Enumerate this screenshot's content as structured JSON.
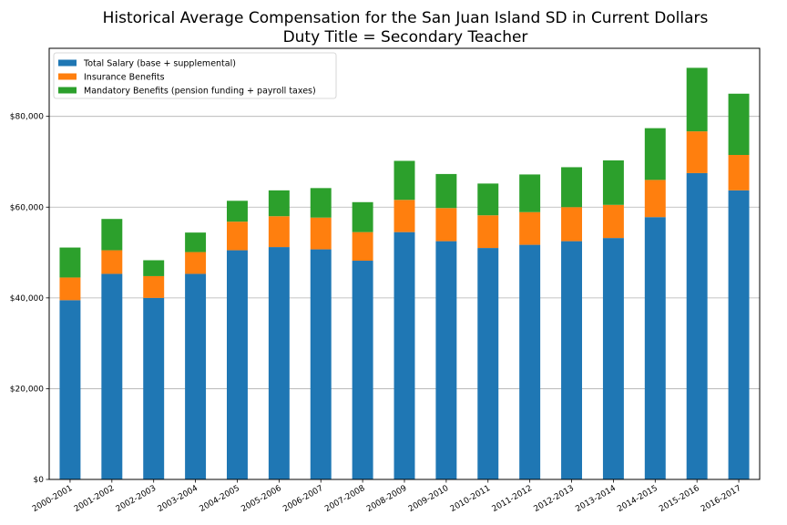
{
  "chart_data": {
    "type": "bar",
    "stacked": true,
    "title": "Historical Average Compensation for the San Juan Island SD in Current Dollars",
    "subtitle": "Duty Title = Secondary Teacher",
    "xlabel": "",
    "ylabel": "",
    "ylim": [
      0,
      95000
    ],
    "yticks": [
      0,
      20000,
      40000,
      60000,
      80000
    ],
    "ytick_labels": [
      "$0",
      "$20,000",
      "$40,000",
      "$60,000",
      "$80,000"
    ],
    "grid": "horizontal",
    "legend_position": "top-left",
    "categories": [
      "2000-2001",
      "2001-2002",
      "2002-2003",
      "2003-2004",
      "2004-2005",
      "2005-2006",
      "2006-2007",
      "2007-2008",
      "2008-2009",
      "2009-2010",
      "2010-2011",
      "2011-2012",
      "2012-2013",
      "2013-2014",
      "2014-2015",
      "2015-2016",
      "2016-2017"
    ],
    "series": [
      {
        "name": "Total Salary (base + supplemental)",
        "color": "#1f77b4",
        "values": [
          39500,
          45300,
          40000,
          45300,
          50500,
          51200,
          50700,
          48200,
          54500,
          52500,
          51000,
          51700,
          52500,
          53200,
          57800,
          67500,
          63700
        ]
      },
      {
        "name": "Insurance Benefits",
        "color": "#ff7f0e",
        "values": [
          5000,
          5200,
          4800,
          4800,
          6300,
          6800,
          7000,
          6300,
          7100,
          7300,
          7200,
          7200,
          7500,
          7300,
          8200,
          9200,
          7800
        ]
      },
      {
        "name": "Mandatory Benefits (pension funding + payroll taxes)",
        "color": "#2ca02c",
        "values": [
          6600,
          6900,
          3500,
          4300,
          4600,
          5700,
          6500,
          6600,
          8600,
          7500,
          7000,
          8300,
          8800,
          9800,
          11400,
          14000,
          13500
        ]
      }
    ]
  }
}
